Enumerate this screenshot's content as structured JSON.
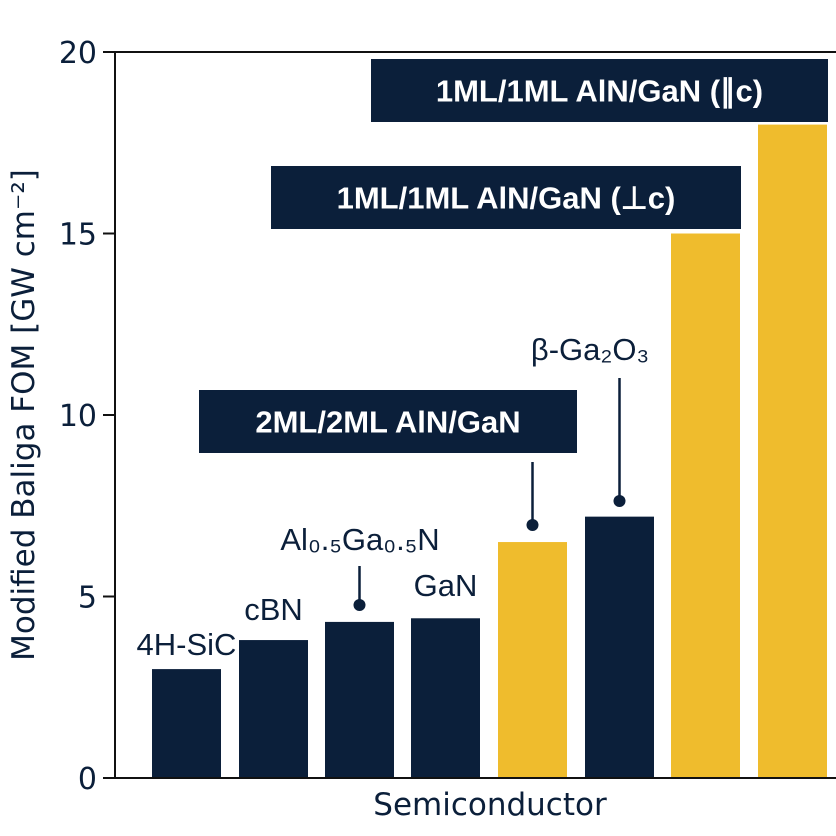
{
  "chart_data": {
    "type": "bar",
    "xlabel": "Semiconductor",
    "ylabel": "Modified Baliga FOM [GW cm⁻²]",
    "ylim": [
      0,
      20
    ],
    "yticks": [
      "0",
      "5",
      "10",
      "15",
      "20"
    ],
    "grid": false,
    "colors": {
      "conventional": "#0b1f3a",
      "superlattice": "#efbc2d",
      "box_text": "#ffffff"
    },
    "bars": [
      {
        "label": "4H-SiC",
        "value": 3.0,
        "kind": "conventional"
      },
      {
        "label": "cBN",
        "value": 3.8,
        "kind": "conventional"
      },
      {
        "label": "Al₀.₅Ga₀.₅N",
        "value": 4.3,
        "kind": "conventional"
      },
      {
        "label": "GaN",
        "value": 4.4,
        "kind": "conventional"
      },
      {
        "label": "2ML/2ML AlN/GaN",
        "value": 6.5,
        "kind": "superlattice"
      },
      {
        "label": "β-Ga₂O₃",
        "value": 7.2,
        "kind": "conventional"
      },
      {
        "label": "1ML/1ML AlN/GaN (⊥c)",
        "value": 15.0,
        "kind": "superlattice"
      },
      {
        "label": "1ML/1ML AlN/GaN (∥c)",
        "value": 18.0,
        "kind": "superlattice"
      }
    ]
  }
}
